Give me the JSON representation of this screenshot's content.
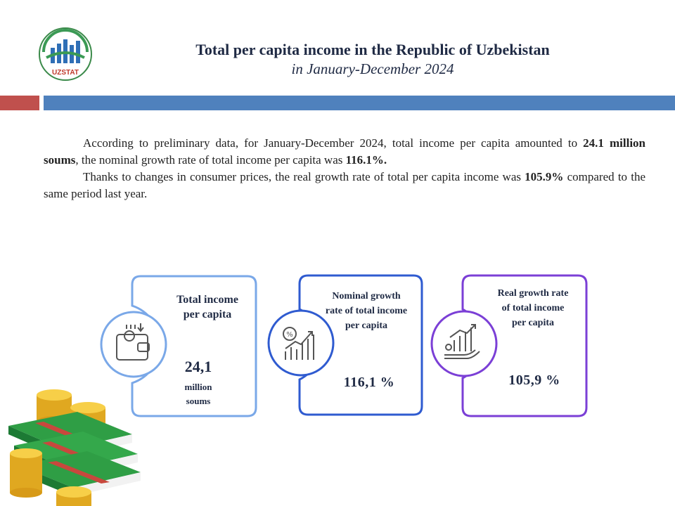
{
  "logo": {
    "text": "UZSTAT",
    "icon": "uzstat-logo-icon"
  },
  "header": {
    "title": "Total per capita income in the Republic of Uzbekistan",
    "subtitle": "in January-December 2024"
  },
  "paragraph": {
    "p1_a": "According to preliminary data, for January-December 2024, total income per capita amounted to ",
    "p1_b": "24.1 million  soums",
    "p1_c": ", the nominal growth rate of total income per capita was ",
    "p1_d": "116.1%.",
    "p2_a": "Thanks to changes in consumer prices, the real growth rate of total per capita income was ",
    "p2_b": "105.9%",
    "p2_c": " compared to the same period last year."
  },
  "cards": [
    {
      "label_l1": "Total income",
      "label_l2": "per capita",
      "value": "24,1",
      "unit_l1": "million",
      "unit_l2": "soums",
      "icon": "wallet-icon",
      "color": "#6f9be0"
    },
    {
      "label_l1": "Nominal growth",
      "label_l2": "rate of total income",
      "label_l3": "per capita",
      "value": "116,1 %",
      "icon": "growth-chart-icon",
      "color": "#2f5bd0"
    },
    {
      "label_l1": "Real growth rate",
      "label_l2": "of total income",
      "label_l3": "per capita",
      "value": "105,9 %",
      "icon": "hand-chart-icon",
      "color": "#7b3fd6"
    }
  ],
  "colors": {
    "red_bar": "#c0504d",
    "blue_bar": "#4f81bd",
    "title": "#1f2a44"
  }
}
